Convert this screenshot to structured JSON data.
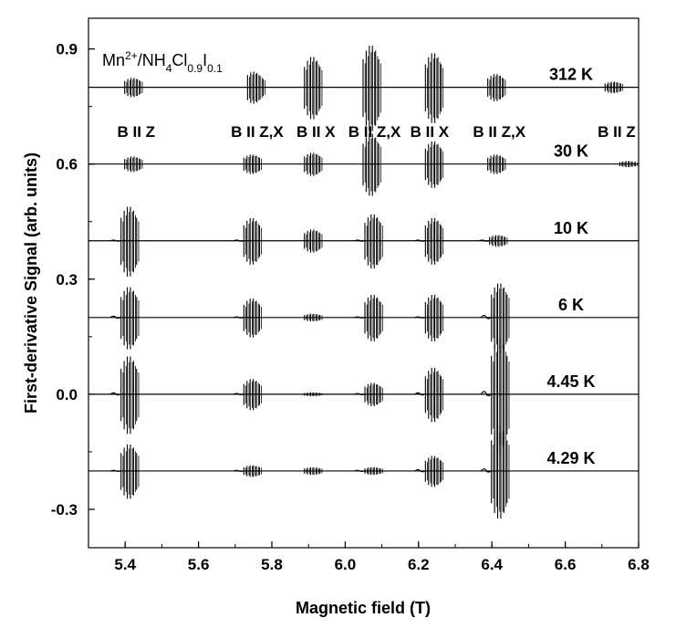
{
  "chart_data": {
    "type": "line",
    "title_parts": [
      {
        "t": "Mn",
        "s": ""
      },
      {
        "t": "2+",
        "s": "sup"
      },
      {
        "t": "/NH",
        "s": ""
      },
      {
        "t": "4",
        "s": "sub"
      },
      {
        "t": "Cl",
        "s": ""
      },
      {
        "t": "0.9",
        "s": "sub"
      },
      {
        "t": "I",
        "s": ""
      },
      {
        "t": "0.1",
        "s": "sub"
      }
    ],
    "xlabel": "Magnetic field (T)",
    "ylabel": "First-derivative Signal (arb. units)",
    "xlim": [
      5.3,
      6.8
    ],
    "ylim": [
      -0.4,
      0.98
    ],
    "x_ticks": [
      {
        "v": 5.4,
        "label": "5.4"
      },
      {
        "v": 5.6,
        "label": "5.6"
      },
      {
        "v": 5.8,
        "label": "5.8"
      },
      {
        "v": 6.0,
        "label": "6.0"
      },
      {
        "v": 6.2,
        "label": "6.2"
      },
      {
        "v": 6.4,
        "label": "6.4"
      },
      {
        "v": 6.6,
        "label": "6.6"
      },
      {
        "v": 6.8,
        "label": "6.8"
      }
    ],
    "y_ticks": [
      {
        "v": -0.3,
        "label": "-0.3"
      },
      {
        "v": 0.0,
        "label": "0.0"
      },
      {
        "v": 0.3,
        "label": "0.3"
      },
      {
        "v": 0.6,
        "label": "0.6"
      },
      {
        "v": 0.9,
        "label": "0.9"
      }
    ],
    "orientation_labels": [
      {
        "text": "B II Z",
        "x": 5.43
      },
      {
        "text": "B II Z,X",
        "x": 5.76
      },
      {
        "text": "B II X",
        "x": 5.92
      },
      {
        "text": "B II Z,X",
        "x": 6.08
      },
      {
        "text": "B II X",
        "x": 6.23
      },
      {
        "text": "B II Z,X",
        "x": 6.42
      },
      {
        "text": "B II Z",
        "x": 6.74
      }
    ],
    "series": [
      {
        "name": "312 K",
        "baseline": 0.8,
        "groups": [
          {
            "center": 5.42,
            "amp": 0.025,
            "lead": 0.0,
            "asym": 0.0
          },
          {
            "center": 5.755,
            "amp": 0.04,
            "lead": 0.0,
            "asym": -0.2
          },
          {
            "center": 5.91,
            "amp": 0.08,
            "lead": 0.0,
            "asym": 0.0
          },
          {
            "center": 6.07,
            "amp": 0.11,
            "lead": 0.0,
            "asym": 0.0
          },
          {
            "center": 6.24,
            "amp": 0.09,
            "lead": 0.0,
            "asym": 0.0
          },
          {
            "center": 6.41,
            "amp": 0.035,
            "lead": 0.0,
            "asym": 0.0
          },
          {
            "center": 6.73,
            "amp": 0.015,
            "lead": 0.0,
            "asym": 0.0
          }
        ]
      },
      {
        "name": "30 K",
        "baseline": 0.6,
        "groups": [
          {
            "center": 5.42,
            "amp": 0.02,
            "lead": 0.0,
            "asym": 0.0
          },
          {
            "center": 5.745,
            "amp": 0.025,
            "lead": 0.0,
            "asym": 0.0
          },
          {
            "center": 5.91,
            "amp": 0.03,
            "lead": 0.0,
            "asym": 0.0
          },
          {
            "center": 6.07,
            "amp": 0.08,
            "lead": 0.0,
            "asym": 0.0
          },
          {
            "center": 6.24,
            "amp": 0.06,
            "lead": 0.0,
            "asym": 0.0
          },
          {
            "center": 6.41,
            "amp": 0.025,
            "lead": 0.0,
            "asym": 0.0
          },
          {
            "center": 6.77,
            "amp": 0.008,
            "lead": 0.0,
            "asym": 0.0
          }
        ]
      },
      {
        "name": "10 K",
        "baseline": 0.4,
        "groups": [
          {
            "center": 5.41,
            "amp": 0.09,
            "lead": 0.01,
            "asym": 0.0
          },
          {
            "center": 5.745,
            "amp": 0.06,
            "lead": 0.01,
            "asym": 0.0
          },
          {
            "center": 5.91,
            "amp": 0.03,
            "lead": 0.0,
            "asym": 0.0
          },
          {
            "center": 6.075,
            "amp": 0.07,
            "lead": 0.01,
            "asym": 0.0
          },
          {
            "center": 6.24,
            "amp": 0.06,
            "lead": 0.01,
            "asym": 0.0
          },
          {
            "center": 6.415,
            "amp": 0.015,
            "lead": 0.01,
            "asym": 0.0
          }
        ]
      },
      {
        "name": "6 K",
        "baseline": 0.2,
        "groups": [
          {
            "center": 5.41,
            "amp": 0.08,
            "lead": 0.02,
            "asym": 0.0
          },
          {
            "center": 5.745,
            "amp": 0.05,
            "lead": 0.01,
            "asym": 0.0
          },
          {
            "center": 5.91,
            "amp": 0.01,
            "lead": 0.0,
            "asym": 0.0
          },
          {
            "center": 6.075,
            "amp": 0.06,
            "lead": 0.01,
            "asym": 0.0
          },
          {
            "center": 6.24,
            "amp": 0.06,
            "lead": 0.01,
            "asym": 0.0
          },
          {
            "center": 6.42,
            "amp": 0.09,
            "lead": 0.03,
            "asym": 0.0
          }
        ]
      },
      {
        "name": "4.45 K",
        "baseline": 0.0,
        "groups": [
          {
            "center": 5.41,
            "amp": 0.1,
            "lead": 0.02,
            "asym": 0.0
          },
          {
            "center": 5.745,
            "amp": 0.04,
            "lead": 0.01,
            "asym": 0.0
          },
          {
            "center": 5.91,
            "amp": 0.005,
            "lead": 0.0,
            "asym": 0.0
          },
          {
            "center": 6.075,
            "amp": 0.03,
            "lead": 0.01,
            "asym": 0.0
          },
          {
            "center": 6.24,
            "amp": 0.07,
            "lead": 0.02,
            "asym": 0.0
          },
          {
            "center": 6.42,
            "amp": 0.15,
            "lead": 0.04,
            "asym": 0.0
          }
        ]
      },
      {
        "name": "4.29 K",
        "baseline": -0.2,
        "groups": [
          {
            "center": 5.41,
            "amp": 0.07,
            "lead": 0.01,
            "asym": 0.0
          },
          {
            "center": 5.745,
            "amp": 0.015,
            "lead": 0.01,
            "asym": 0.0
          },
          {
            "center": 5.91,
            "amp": 0.01,
            "lead": 0.0,
            "asym": 0.0
          },
          {
            "center": 6.075,
            "amp": 0.01,
            "lead": 0.01,
            "asym": 0.0
          },
          {
            "center": 6.24,
            "amp": 0.04,
            "lead": 0.02,
            "asym": 0.0
          },
          {
            "center": 6.42,
            "amp": 0.12,
            "lead": 0.03,
            "asym": 0.0
          }
        ]
      }
    ]
  }
}
